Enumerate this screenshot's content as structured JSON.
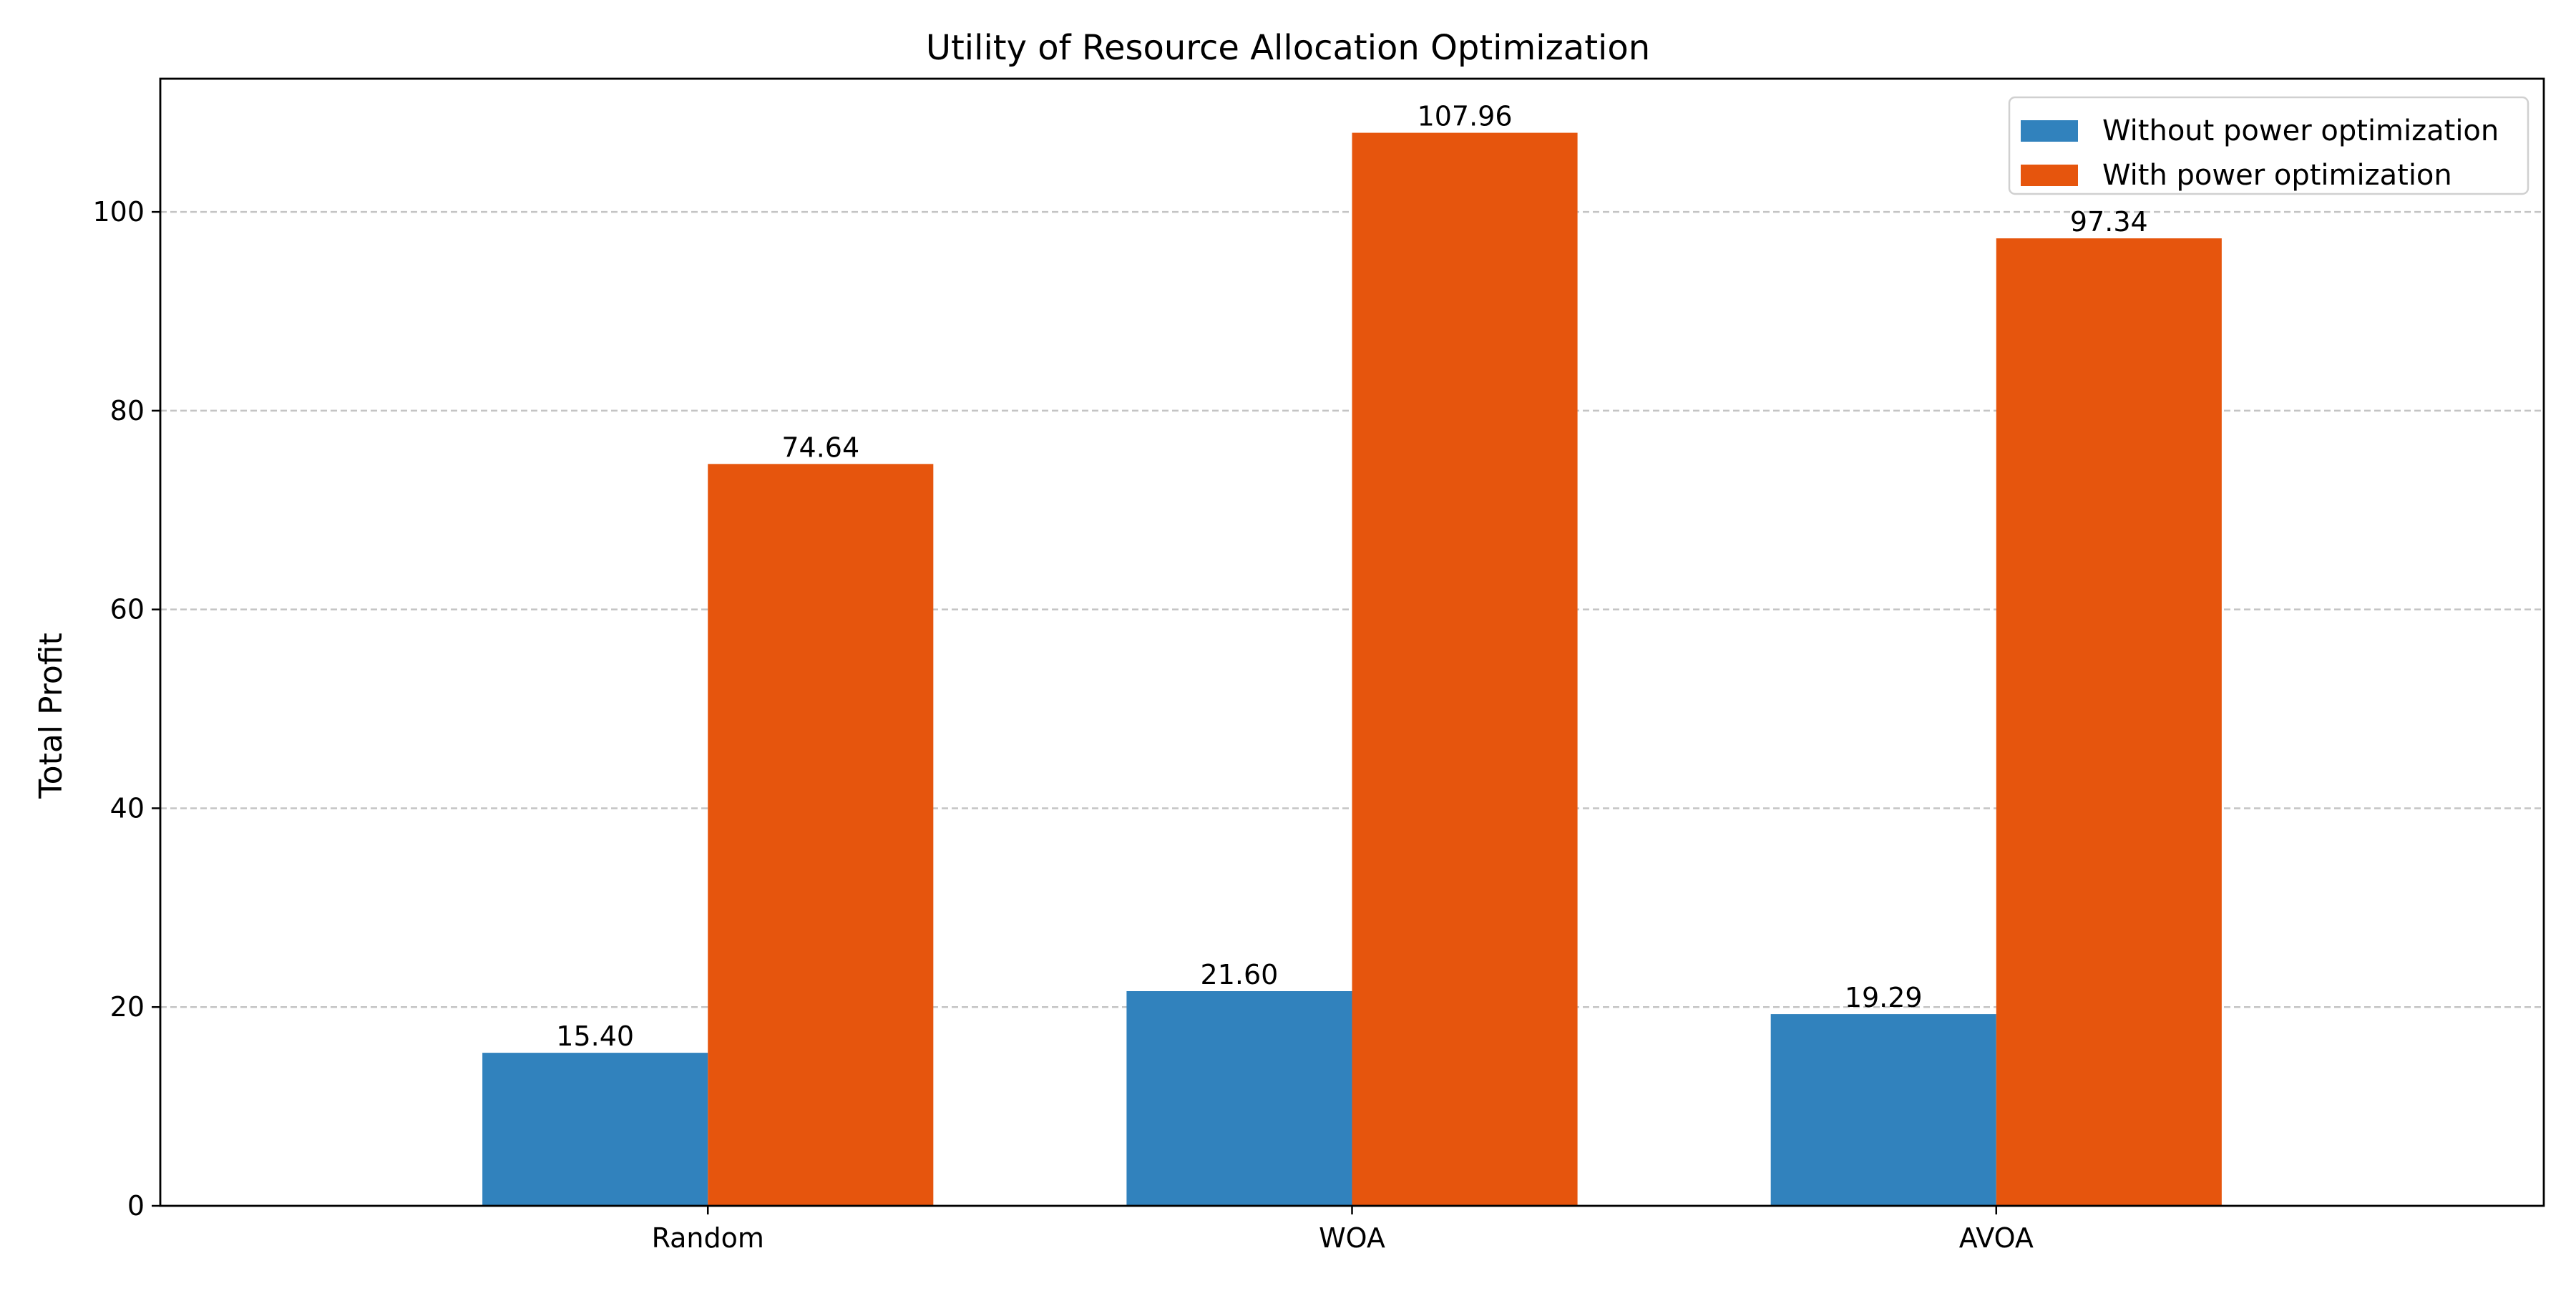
{
  "chart_data": {
    "type": "bar",
    "title": "Utility of Resource Allocation Optimization",
    "xlabel": "",
    "ylabel": "Total Profit",
    "categories": [
      "Random",
      "WOA",
      "AVOA"
    ],
    "series": [
      {
        "name": "Without power optimization",
        "color": "#3182bd",
        "values": [
          15.4,
          21.6,
          19.29
        ],
        "labels": [
          "15.40",
          "21.60",
          "19.29"
        ]
      },
      {
        "name": "With power optimization",
        "color": "#e6550d",
        "values": [
          74.64,
          107.96,
          97.34
        ],
        "labels": [
          "74.64",
          "107.96",
          "97.34"
        ]
      }
    ],
    "ylim": [
      0,
      113.4
    ],
    "yticks": [
      0,
      20,
      40,
      60,
      80,
      100
    ],
    "grid": "y-dashed",
    "legend_position": "top-right"
  }
}
